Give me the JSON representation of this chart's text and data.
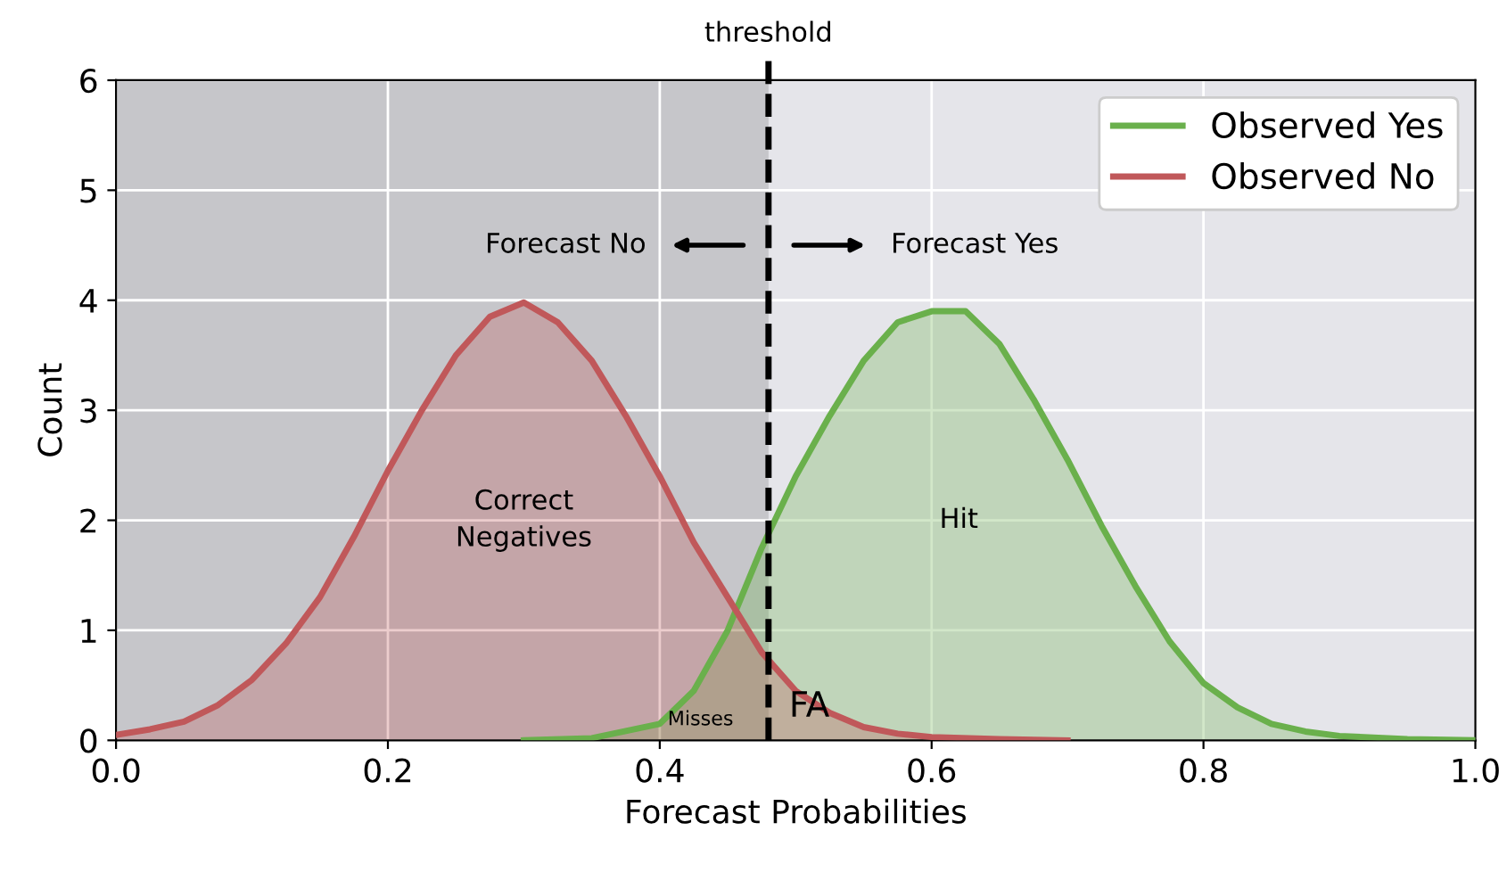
{
  "chart_data": {
    "type": "area",
    "xlabel": "Forecast Probabilities",
    "ylabel": "Count",
    "xlim": [
      0,
      1
    ],
    "ylim": [
      0,
      6
    ],
    "xticks": [
      {
        "value": 0,
        "label": "0.0"
      },
      0.2,
      0.4,
      0.6,
      0.8,
      {
        "value": 1,
        "label": "1.0"
      }
    ],
    "yticks": [
      0,
      1,
      2,
      3,
      4,
      5,
      6
    ],
    "series": [
      {
        "name": "Observed Yes",
        "color": "#6ab04c",
        "x": [
          0.3,
          0.35,
          0.4,
          0.425,
          0.45,
          0.475,
          0.5,
          0.525,
          0.55,
          0.575,
          0.6,
          0.625,
          0.65,
          0.675,
          0.7,
          0.725,
          0.75,
          0.775,
          0.8,
          0.825,
          0.85,
          0.875,
          0.9,
          0.95,
          1.0
        ],
        "values": [
          0,
          0.02,
          0.15,
          0.45,
          1.0,
          1.75,
          2.4,
          2.95,
          3.45,
          3.8,
          3.9,
          3.9,
          3.6,
          3.1,
          2.55,
          1.95,
          1.4,
          0.9,
          0.52,
          0.3,
          0.15,
          0.08,
          0.04,
          0.01,
          0
        ]
      },
      {
        "name": "Observed No",
        "color": "#c0585a",
        "x": [
          0,
          0.025,
          0.05,
          0.075,
          0.1,
          0.125,
          0.15,
          0.175,
          0.2,
          0.225,
          0.25,
          0.275,
          0.3,
          0.325,
          0.35,
          0.375,
          0.4,
          0.425,
          0.45,
          0.475,
          0.5,
          0.525,
          0.55,
          0.575,
          0.6,
          0.65,
          0.7
        ],
        "values": [
          0.05,
          0.1,
          0.17,
          0.32,
          0.55,
          0.88,
          1.3,
          1.85,
          2.45,
          3.0,
          3.5,
          3.85,
          3.98,
          3.8,
          3.45,
          2.95,
          2.4,
          1.8,
          1.3,
          0.8,
          0.45,
          0.25,
          0.12,
          0.06,
          0.03,
          0.01,
          0
        ]
      }
    ],
    "ref_lines": [
      {
        "axis": "x",
        "value": 0.48,
        "label": "threshold",
        "color": "#000000",
        "line_style": "dashed"
      }
    ],
    "bands": [
      {
        "axis": "x",
        "from": 0,
        "to": 0.48,
        "color": "#b0b0b4"
      }
    ],
    "annotations": [
      "Forecast No",
      "Forecast Yes",
      "Correct Negatives",
      "Hit",
      "Misses",
      "FA"
    ],
    "grid": true,
    "legend": "top right"
  }
}
